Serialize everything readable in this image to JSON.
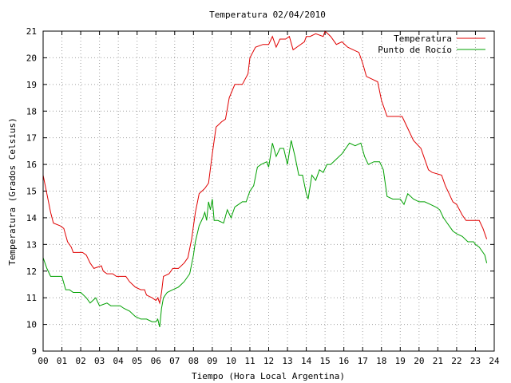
{
  "chart_data": {
    "type": "line",
    "title": "Temperatura 02/04/2010",
    "xlabel": "Tiempo (Hora Local Argentina)",
    "ylabel": "Temperatura (Grados Celsius)",
    "xlim": [
      0,
      24
    ],
    "ylim": [
      9,
      21
    ],
    "x_ticks": [
      {
        "value": 0,
        "label": "00"
      },
      {
        "value": 1,
        "label": "01"
      },
      {
        "value": 2,
        "label": "02"
      },
      {
        "value": 3,
        "label": "03"
      },
      {
        "value": 4,
        "label": "04"
      },
      {
        "value": 5,
        "label": "05"
      },
      {
        "value": 6,
        "label": "06"
      },
      {
        "value": 7,
        "label": "07"
      },
      {
        "value": 8,
        "label": "08"
      },
      {
        "value": 9,
        "label": "09"
      },
      {
        "value": 10,
        "label": "10"
      },
      {
        "value": 11,
        "label": "11"
      },
      {
        "value": 12,
        "label": "12"
      },
      {
        "value": 13,
        "label": "13"
      },
      {
        "value": 14,
        "label": "14"
      },
      {
        "value": 15,
        "label": "15"
      },
      {
        "value": 16,
        "label": "16"
      },
      {
        "value": 17,
        "label": "17"
      },
      {
        "value": 18,
        "label": "18"
      },
      {
        "value": 19,
        "label": "19"
      },
      {
        "value": 20,
        "label": "20"
      },
      {
        "value": 21,
        "label": "21"
      },
      {
        "value": 22,
        "label": "22"
      },
      {
        "value": 23,
        "label": "23"
      },
      {
        "value": 24,
        "label": "24"
      }
    ],
    "y_ticks": [
      {
        "value": 9,
        "label": "9"
      },
      {
        "value": 10,
        "label": "10"
      },
      {
        "value": 11,
        "label": "11"
      },
      {
        "value": 12,
        "label": "12"
      },
      {
        "value": 13,
        "label": "13"
      },
      {
        "value": 14,
        "label": "14"
      },
      {
        "value": 15,
        "label": "15"
      },
      {
        "value": 16,
        "label": "16"
      },
      {
        "value": 17,
        "label": "17"
      },
      {
        "value": 18,
        "label": "18"
      },
      {
        "value": 19,
        "label": "19"
      },
      {
        "value": 20,
        "label": "20"
      },
      {
        "value": 21,
        "label": "21"
      }
    ],
    "grid": true,
    "legend_position": "top-right",
    "series": [
      {
        "name": "Temperatura",
        "color": "#e00000",
        "points": [
          [
            0.0,
            15.6
          ],
          [
            0.2,
            14.9
          ],
          [
            0.4,
            14.2
          ],
          [
            0.55,
            13.8
          ],
          [
            0.9,
            13.7
          ],
          [
            1.1,
            13.6
          ],
          [
            1.3,
            13.1
          ],
          [
            1.5,
            12.9
          ],
          [
            1.6,
            12.7
          ],
          [
            2.1,
            12.7
          ],
          [
            2.3,
            12.6
          ],
          [
            2.5,
            12.3
          ],
          [
            2.7,
            12.1
          ],
          [
            3.1,
            12.2
          ],
          [
            3.2,
            12.0
          ],
          [
            3.4,
            11.9
          ],
          [
            3.7,
            11.9
          ],
          [
            3.9,
            11.8
          ],
          [
            4.4,
            11.8
          ],
          [
            4.6,
            11.6
          ],
          [
            4.9,
            11.4
          ],
          [
            5.2,
            11.3
          ],
          [
            5.4,
            11.3
          ],
          [
            5.5,
            11.1
          ],
          [
            5.8,
            11.0
          ],
          [
            6.0,
            10.9
          ],
          [
            6.1,
            11.0
          ],
          [
            6.2,
            10.8
          ],
          [
            6.3,
            11.2
          ],
          [
            6.4,
            11.8
          ],
          [
            6.7,
            11.9
          ],
          [
            6.9,
            12.1
          ],
          [
            7.2,
            12.1
          ],
          [
            7.5,
            12.3
          ],
          [
            7.7,
            12.5
          ],
          [
            7.9,
            13.2
          ],
          [
            8.1,
            14.2
          ],
          [
            8.3,
            14.9
          ],
          [
            8.6,
            15.1
          ],
          [
            8.8,
            15.3
          ],
          [
            9.0,
            16.4
          ],
          [
            9.2,
            17.4
          ],
          [
            9.5,
            17.6
          ],
          [
            9.7,
            17.7
          ],
          [
            9.9,
            18.5
          ],
          [
            10.2,
            19.0
          ],
          [
            10.6,
            19.0
          ],
          [
            10.9,
            19.4
          ],
          [
            11.0,
            20.0
          ],
          [
            11.3,
            20.4
          ],
          [
            11.7,
            20.5
          ],
          [
            12.0,
            20.5
          ],
          [
            12.2,
            20.8
          ],
          [
            12.4,
            20.4
          ],
          [
            12.6,
            20.7
          ],
          [
            12.9,
            20.7
          ],
          [
            13.1,
            20.8
          ],
          [
            13.3,
            20.3
          ],
          [
            13.5,
            20.4
          ],
          [
            13.9,
            20.6
          ],
          [
            14.0,
            20.8
          ],
          [
            14.2,
            20.8
          ],
          [
            14.5,
            20.9
          ],
          [
            14.9,
            20.8
          ],
          [
            15.0,
            21.0
          ],
          [
            15.3,
            20.8
          ],
          [
            15.6,
            20.5
          ],
          [
            15.9,
            20.6
          ],
          [
            16.2,
            20.4
          ],
          [
            16.5,
            20.3
          ],
          [
            16.8,
            20.2
          ],
          [
            17.0,
            19.8
          ],
          [
            17.2,
            19.3
          ],
          [
            17.5,
            19.2
          ],
          [
            17.8,
            19.1
          ],
          [
            18.0,
            18.4
          ],
          [
            18.3,
            17.8
          ],
          [
            18.8,
            17.8
          ],
          [
            19.1,
            17.8
          ],
          [
            19.3,
            17.5
          ],
          [
            19.5,
            17.2
          ],
          [
            19.7,
            16.9
          ],
          [
            20.1,
            16.6
          ],
          [
            20.3,
            16.2
          ],
          [
            20.5,
            15.8
          ],
          [
            20.7,
            15.7
          ],
          [
            21.2,
            15.6
          ],
          [
            21.4,
            15.2
          ],
          [
            21.6,
            14.9
          ],
          [
            21.8,
            14.6
          ],
          [
            22.0,
            14.5
          ],
          [
            22.3,
            14.1
          ],
          [
            22.5,
            13.9
          ],
          [
            23.0,
            13.9
          ],
          [
            23.2,
            13.9
          ],
          [
            23.4,
            13.6
          ],
          [
            23.6,
            13.2
          ]
        ]
      },
      {
        "name": "Punto de Rocío",
        "color": "#00a000",
        "points": [
          [
            0.0,
            12.5
          ],
          [
            0.2,
            12.1
          ],
          [
            0.4,
            11.8
          ],
          [
            1.0,
            11.8
          ],
          [
            1.2,
            11.3
          ],
          [
            1.4,
            11.3
          ],
          [
            1.6,
            11.2
          ],
          [
            2.0,
            11.2
          ],
          [
            2.3,
            11.0
          ],
          [
            2.5,
            10.8
          ],
          [
            2.8,
            11.0
          ],
          [
            3.0,
            10.7
          ],
          [
            3.4,
            10.8
          ],
          [
            3.6,
            10.7
          ],
          [
            4.1,
            10.7
          ],
          [
            4.3,
            10.6
          ],
          [
            4.6,
            10.5
          ],
          [
            4.9,
            10.3
          ],
          [
            5.2,
            10.2
          ],
          [
            5.5,
            10.2
          ],
          [
            5.8,
            10.1
          ],
          [
            6.0,
            10.1
          ],
          [
            6.1,
            10.2
          ],
          [
            6.2,
            9.9
          ],
          [
            6.3,
            10.6
          ],
          [
            6.4,
            11.0
          ],
          [
            6.6,
            11.2
          ],
          [
            6.9,
            11.3
          ],
          [
            7.2,
            11.4
          ],
          [
            7.5,
            11.6
          ],
          [
            7.8,
            11.9
          ],
          [
            8.0,
            12.6
          ],
          [
            8.1,
            13.1
          ],
          [
            8.3,
            13.7
          ],
          [
            8.5,
            14.0
          ],
          [
            8.6,
            14.2
          ],
          [
            8.7,
            13.9
          ],
          [
            8.8,
            14.6
          ],
          [
            8.9,
            14.3
          ],
          [
            9.0,
            14.7
          ],
          [
            9.1,
            13.9
          ],
          [
            9.3,
            13.9
          ],
          [
            9.6,
            13.8
          ],
          [
            9.8,
            14.3
          ],
          [
            10.0,
            14.0
          ],
          [
            10.2,
            14.4
          ],
          [
            10.4,
            14.5
          ],
          [
            10.6,
            14.6
          ],
          [
            10.8,
            14.6
          ],
          [
            11.0,
            15.0
          ],
          [
            11.2,
            15.2
          ],
          [
            11.4,
            15.9
          ],
          [
            11.6,
            16.0
          ],
          [
            11.9,
            16.1
          ],
          [
            12.0,
            15.9
          ],
          [
            12.2,
            16.8
          ],
          [
            12.4,
            16.3
          ],
          [
            12.6,
            16.6
          ],
          [
            12.8,
            16.6
          ],
          [
            13.0,
            16.0
          ],
          [
            13.2,
            16.9
          ],
          [
            13.4,
            16.3
          ],
          [
            13.6,
            15.6
          ],
          [
            13.8,
            15.6
          ],
          [
            14.0,
            14.9
          ],
          [
            14.1,
            14.7
          ],
          [
            14.3,
            15.6
          ],
          [
            14.5,
            15.4
          ],
          [
            14.7,
            15.8
          ],
          [
            14.9,
            15.7
          ],
          [
            15.1,
            16.0
          ],
          [
            15.3,
            16.0
          ],
          [
            15.6,
            16.2
          ],
          [
            15.9,
            16.4
          ],
          [
            16.1,
            16.6
          ],
          [
            16.3,
            16.8
          ],
          [
            16.6,
            16.7
          ],
          [
            16.9,
            16.8
          ],
          [
            17.1,
            16.3
          ],
          [
            17.3,
            16.0
          ],
          [
            17.6,
            16.1
          ],
          [
            17.9,
            16.1
          ],
          [
            18.1,
            15.8
          ],
          [
            18.3,
            14.8
          ],
          [
            18.6,
            14.7
          ],
          [
            19.0,
            14.7
          ],
          [
            19.2,
            14.5
          ],
          [
            19.4,
            14.9
          ],
          [
            19.7,
            14.7
          ],
          [
            20.0,
            14.6
          ],
          [
            20.3,
            14.6
          ],
          [
            20.6,
            14.5
          ],
          [
            20.9,
            14.4
          ],
          [
            21.1,
            14.3
          ],
          [
            21.3,
            14.0
          ],
          [
            21.5,
            13.8
          ],
          [
            21.8,
            13.5
          ],
          [
            22.0,
            13.4
          ],
          [
            22.3,
            13.3
          ],
          [
            22.6,
            13.1
          ],
          [
            22.9,
            13.1
          ],
          [
            23.0,
            13.0
          ],
          [
            23.2,
            12.9
          ],
          [
            23.4,
            12.7
          ],
          [
            23.5,
            12.6
          ],
          [
            23.6,
            12.3
          ]
        ]
      }
    ]
  }
}
